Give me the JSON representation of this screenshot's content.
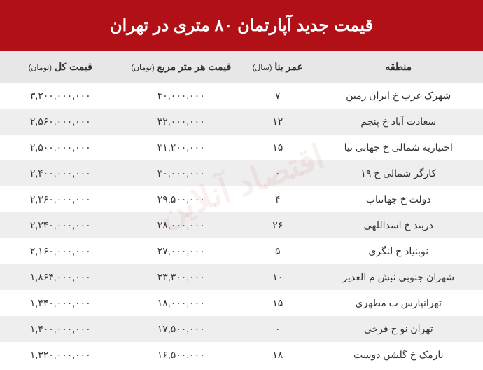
{
  "title": "قیمت جدید آپارتمان ۸۰ متری در تهران",
  "watermark": "اقتصاد آنلاین",
  "colors": {
    "header_bg": "#b11116",
    "header_text": "#ffffff",
    "thead_bg": "#e7e7e7",
    "row_odd": "#ffffff",
    "row_even": "#eeeeee",
    "text": "#333333"
  },
  "columns": [
    {
      "label": "منطقه",
      "unit": ""
    },
    {
      "label": "عمر بنا",
      "unit": "(سال)"
    },
    {
      "label": "قیمت هر متر مربع",
      "unit": "(تومان)"
    },
    {
      "label": "قیمت کل",
      "unit": "(تومان)"
    }
  ],
  "rows": [
    {
      "region": "شهرک غرب خ ایران زمین",
      "age": "۷",
      "ppm": "۴۰,۰۰۰,۰۰۰",
      "total": "۳,۲۰۰,۰۰۰,۰۰۰"
    },
    {
      "region": "سعادت آباد خ پنجم",
      "age": "۱۲",
      "ppm": "۳۲,۰۰۰,۰۰۰",
      "total": "۲,۵۶۰,۰۰۰,۰۰۰"
    },
    {
      "region": "اختیاریه شمالی خ جهانی نیا",
      "age": "۱۵",
      "ppm": "۳۱,۲۰۰,۰۰۰",
      "total": "۲,۵۰۰,۰۰۰,۰۰۰"
    },
    {
      "region": "کارگر شمالی خ ۱۹",
      "age": "۰",
      "ppm": "۳۰,۰۰۰,۰۰۰",
      "total": "۲,۴۰۰,۰۰۰,۰۰۰"
    },
    {
      "region": "دولت خ جهانتاب",
      "age": "۴",
      "ppm": "۲۹,۵۰۰,۰۰۰",
      "total": "۲,۳۶۰,۰۰۰,۰۰۰"
    },
    {
      "region": "دربند خ اسداللهی",
      "age": "۲۶",
      "ppm": "۲۸,۰۰۰,۰۰۰",
      "total": "۲,۲۴۰,۰۰۰,۰۰۰"
    },
    {
      "region": "نوبنیاد خ لنگری",
      "age": "۵",
      "ppm": "۲۷,۰۰۰,۰۰۰",
      "total": "۲,۱۶۰,۰۰۰,۰۰۰"
    },
    {
      "region": "شهران جنوبی نبش م الغدیر",
      "age": "۱۰",
      "ppm": "۲۳,۳۰۰,۰۰۰",
      "total": "۱,۸۶۴,۰۰۰,۰۰۰"
    },
    {
      "region": "تهرانپارس ب مطهری",
      "age": "۱۵",
      "ppm": "۱۸,۰۰۰,۰۰۰",
      "total": "۱,۴۴۰,۰۰۰,۰۰۰"
    },
    {
      "region": "تهران نو خ فرخی",
      "age": "۰",
      "ppm": "۱۷,۵۰۰,۰۰۰",
      "total": "۱,۴۰۰,۰۰۰,۰۰۰"
    },
    {
      "region": "نارمک خ گلشن دوست",
      "age": "۱۸",
      "ppm": "۱۶,۵۰۰,۰۰۰",
      "total": "۱,۳۲۰,۰۰۰,۰۰۰"
    }
  ]
}
